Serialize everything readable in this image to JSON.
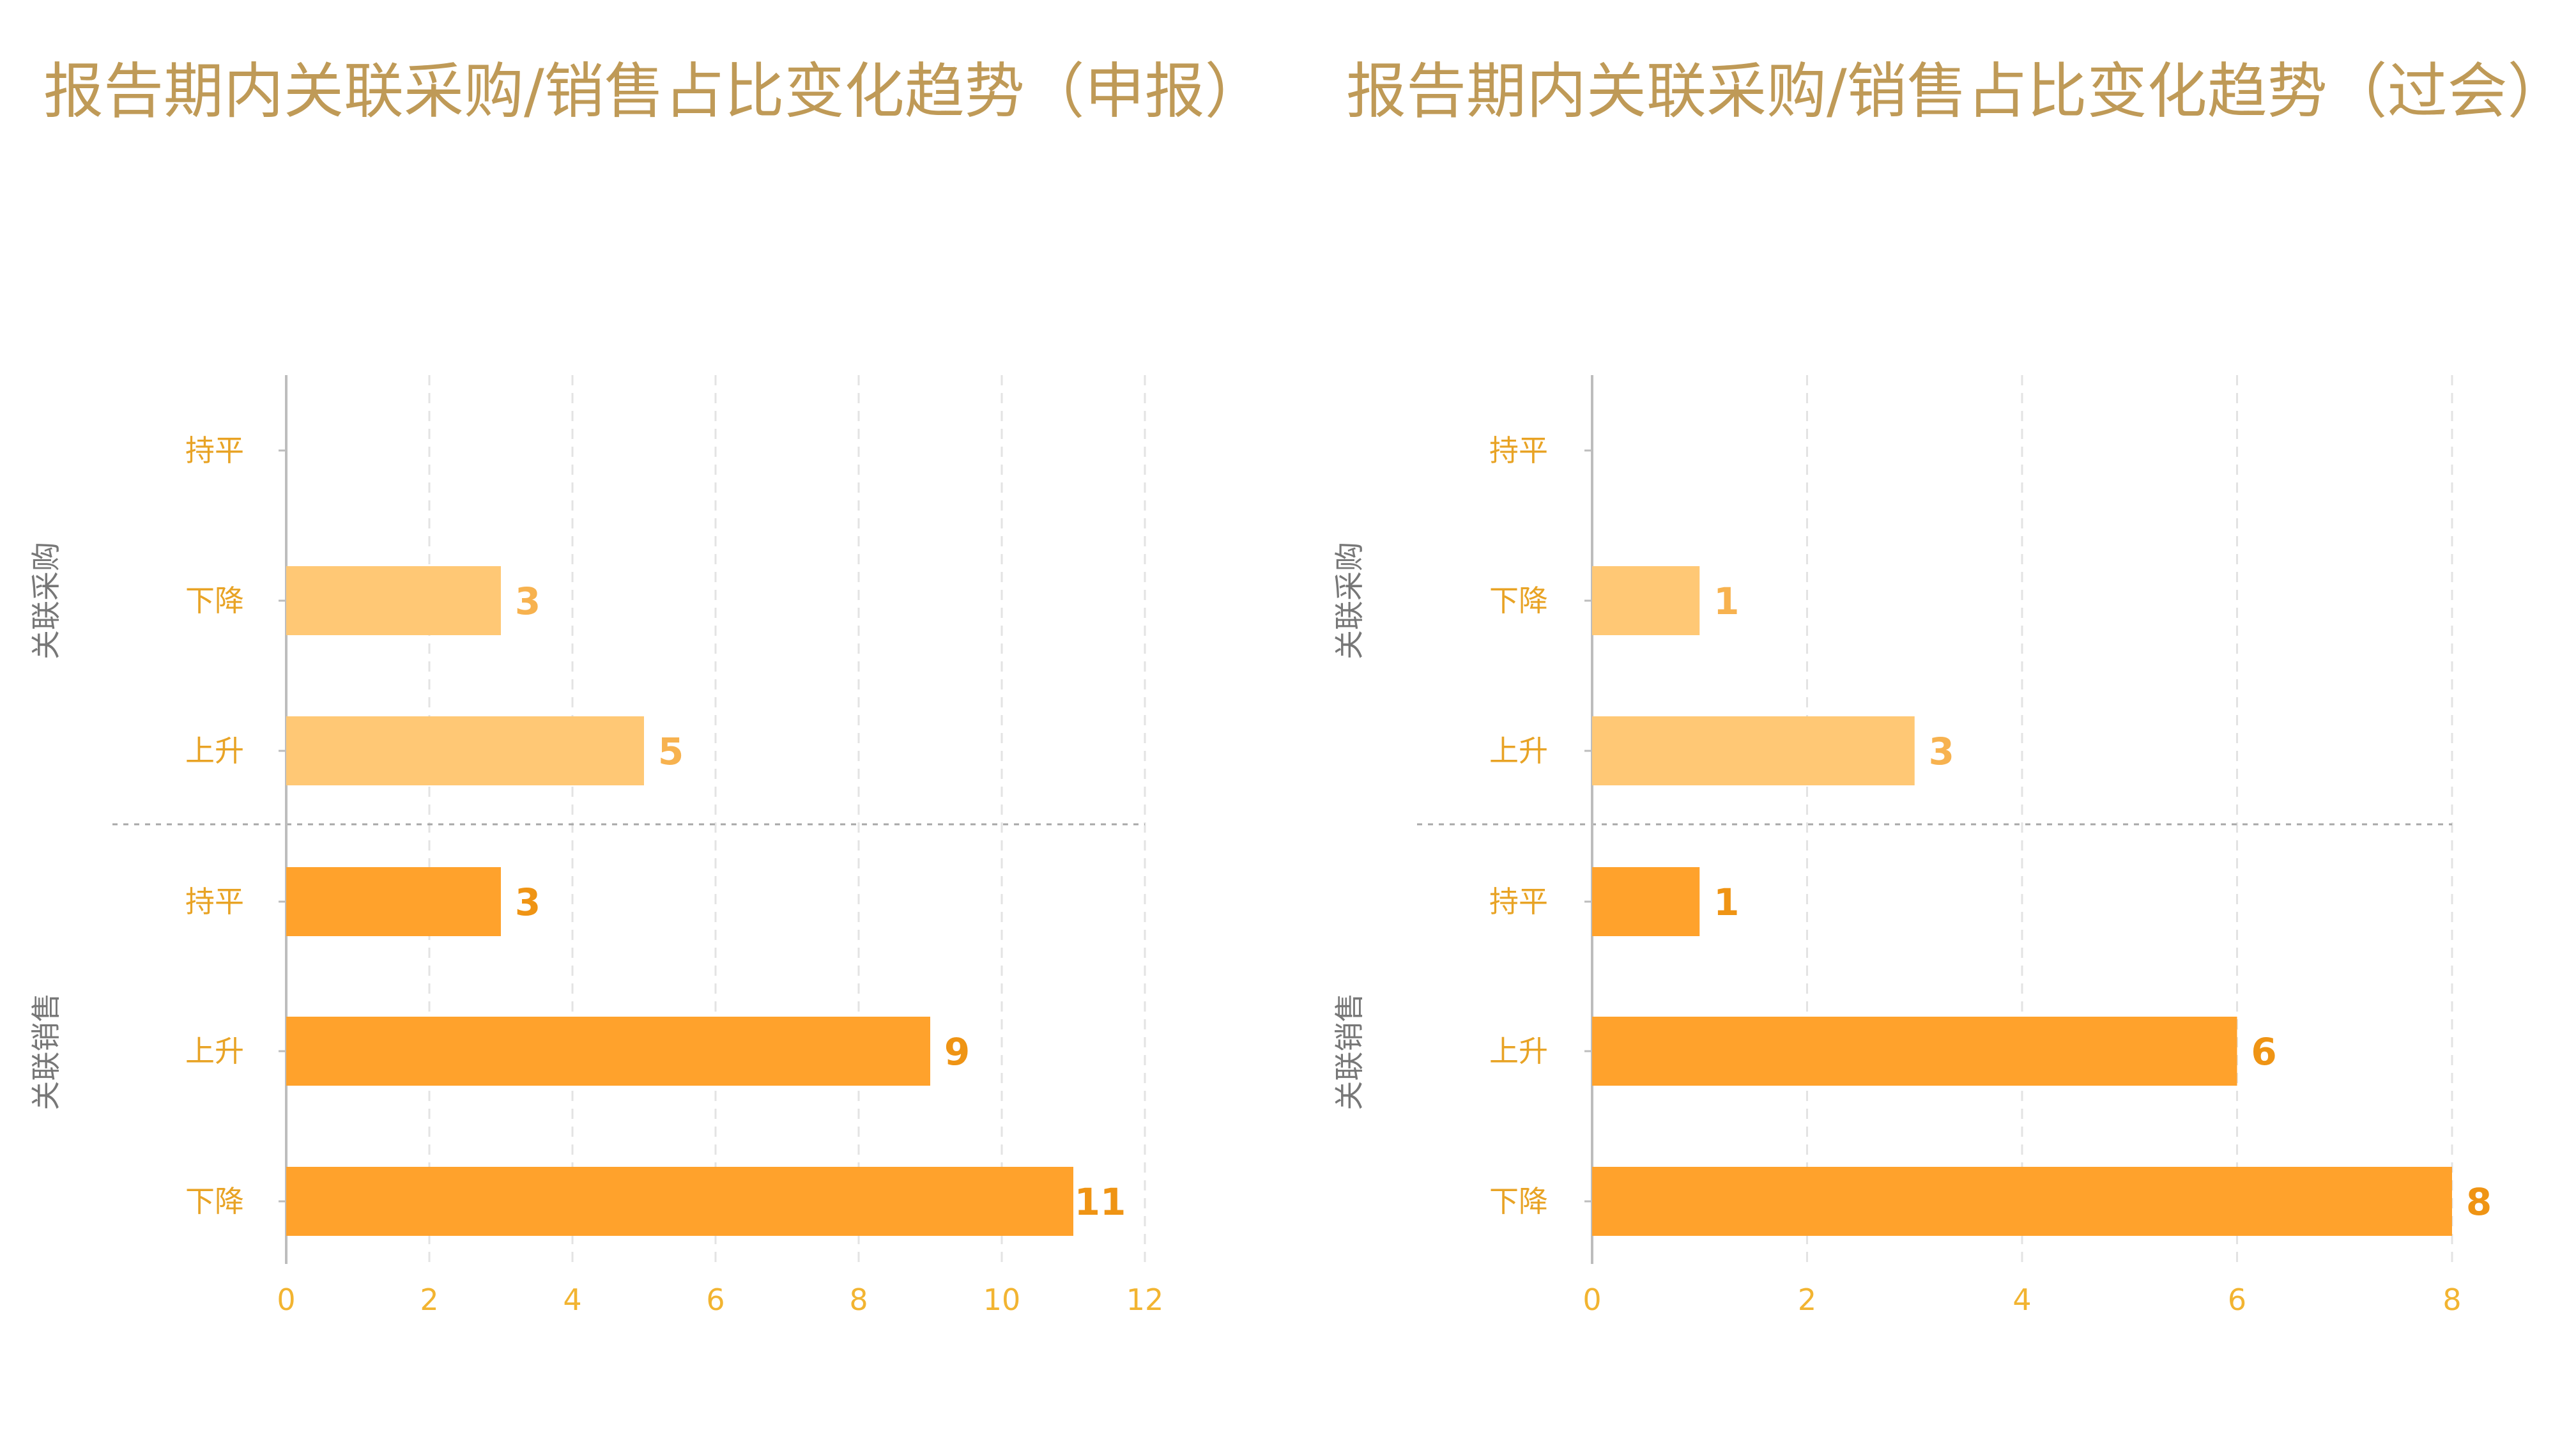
{
  "chart_data": [
    {
      "type": "bar",
      "orientation": "horizontal",
      "title": "报告期内关联采购/销售占比变化趋势（申报）",
      "xlim": [
        0,
        12
      ],
      "xticks": [
        0,
        2,
        4,
        6,
        8,
        10,
        12
      ],
      "grid": true,
      "groups": [
        {
          "name": "关联采购",
          "color": "#ffc875",
          "label_color": "#f7b24f",
          "rows": [
            {
              "label": "持平",
              "value": 0
            },
            {
              "label": "下降",
              "value": 3
            },
            {
              "label": "上升",
              "value": 5
            }
          ]
        },
        {
          "name": "关联销售",
          "color": "#ffa22c",
          "label_color": "#ef9414",
          "rows": [
            {
              "label": "持平",
              "value": 3
            },
            {
              "label": "上升",
              "value": 9
            },
            {
              "label": "下降",
              "value": 11
            }
          ]
        }
      ]
    },
    {
      "type": "bar",
      "orientation": "horizontal",
      "title": "报告期内关联采购/销售占比变化趋势（过会）",
      "xlim": [
        0,
        8
      ],
      "xticks": [
        0,
        2,
        4,
        6,
        8
      ],
      "grid": true,
      "groups": [
        {
          "name": "关联采购",
          "color": "#ffc875",
          "label_color": "#f7b24f",
          "rows": [
            {
              "label": "持平",
              "value": 0
            },
            {
              "label": "下降",
              "value": 1
            },
            {
              "label": "上升",
              "value": 3
            }
          ]
        },
        {
          "name": "关联销售",
          "color": "#ffa22c",
          "label_color": "#ef9414",
          "rows": [
            {
              "label": "持平",
              "value": 1
            },
            {
              "label": "上升",
              "value": 6
            },
            {
              "label": "下降",
              "value": 8
            }
          ]
        }
      ]
    }
  ]
}
